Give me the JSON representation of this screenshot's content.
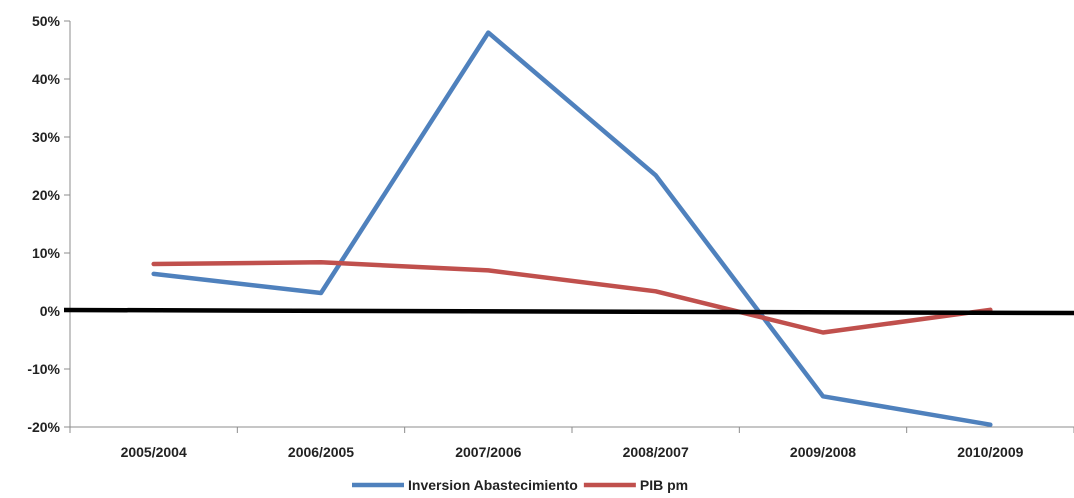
{
  "chart_data": {
    "type": "line",
    "categories": [
      "2005/2004",
      "2006/2005",
      "2007/2006",
      "2008/2007",
      "2009/2008",
      "2010/2009"
    ],
    "y_ticks": [
      "50%",
      "40%",
      "30%",
      "20%",
      "10%",
      "0%",
      "-10%",
      "-20%"
    ],
    "ylim": [
      -20,
      50
    ],
    "grid": false,
    "legend_position": "bottom",
    "series": [
      {
        "name": "Inversion Abastecimiento",
        "color": "#4f81bd",
        "values": [
          6.4,
          3.1,
          48.0,
          23.4,
          -14.7,
          -19.6
        ]
      },
      {
        "name": "PIB pm",
        "color": "#c0504d",
        "values": [
          8.1,
          8.4,
          7.0,
          3.4,
          -3.7,
          0.2
        ]
      }
    ],
    "zero_line_color": "#000000"
  }
}
